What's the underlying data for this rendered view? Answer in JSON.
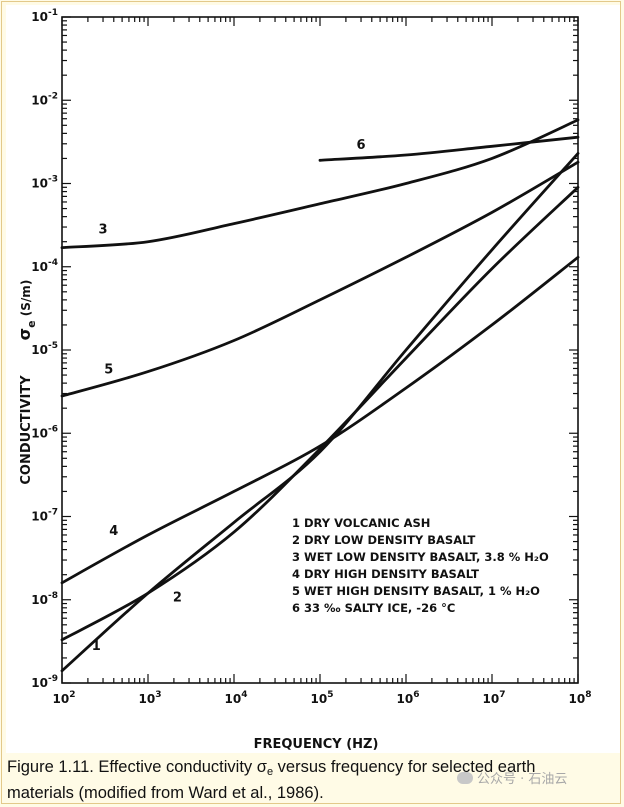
{
  "caption": {
    "line1_before": "Figure 1.11. Effective conductivity σ",
    "line1_sub": "e",
    "line1_after": " versus frequency for selected earth",
    "line2": "materials (modified from Ward et al., 1986)."
  },
  "watermark": "公众号 · 石油云",
  "chart_data": {
    "type": "line",
    "xlabel": "FREQUENCY (HZ)",
    "ylabel_main": "CONDUCTIVITY",
    "ylabel_symbol": "σ",
    "ylabel_sub": "e",
    "ylabel_unit": "(S/m)",
    "x_scale": "log",
    "y_scale": "log",
    "xlim": [
      100,
      100000000
    ],
    "ylim": [
      1e-09,
      0.1
    ],
    "x_ticks": [
      {
        "value": 100,
        "mant": "10",
        "exp": "2"
      },
      {
        "value": 1000,
        "mant": "10",
        "exp": "3"
      },
      {
        "value": 10000,
        "mant": "10",
        "exp": "4"
      },
      {
        "value": 100000,
        "mant": "10",
        "exp": "5"
      },
      {
        "value": 1000000,
        "mant": "10",
        "exp": "6"
      },
      {
        "value": 10000000,
        "mant": "10",
        "exp": "7"
      },
      {
        "value": 100000000,
        "mant": "10",
        "exp": "8"
      }
    ],
    "y_ticks": [
      {
        "value": 1e-09,
        "mant": "10",
        "exp": "-9"
      },
      {
        "value": 1e-08,
        "mant": "10",
        "exp": "-8"
      },
      {
        "value": 1e-07,
        "mant": "10",
        "exp": "-7"
      },
      {
        "value": 1e-06,
        "mant": "10",
        "exp": "-6"
      },
      {
        "value": 1e-05,
        "mant": "10",
        "exp": "-5"
      },
      {
        "value": 0.0001,
        "mant": "10",
        "exp": "-4"
      },
      {
        "value": 0.001,
        "mant": "10",
        "exp": "-3"
      },
      {
        "value": 0.01,
        "mant": "10",
        "exp": "-2"
      },
      {
        "value": 0.1,
        "mant": "10",
        "exp": "-1"
      }
    ],
    "legend_entries": [
      "1  DRY VOLCANIC ASH",
      "2  DRY LOW DENSITY BASALT",
      "3  WET LOW DENSITY BASALT, 3.8 % H₂O",
      "4  DRY HIGH DENSITY BASALT",
      "5  WET HIGH DENSITY BASALT, 1 % H₂O",
      "6  33 ‰ SALTY ICE, -26 °C"
    ],
    "legend_position": "lower-right",
    "series": [
      {
        "label": "1",
        "x": [
          100,
          1000,
          10000,
          100000,
          1000000,
          10000000,
          100000000
        ],
        "y": [
          1.4e-09,
          1.2e-08,
          8.5e-08,
          6e-07,
          1e-05,
          0.00016,
          0.0023
        ]
      },
      {
        "label": "2",
        "x": [
          100,
          1000,
          10000,
          100000,
          1000000,
          10000000,
          100000000
        ],
        "y": [
          3.3e-09,
          1.2e-08,
          6.5e-08,
          6.5e-07,
          8e-06,
          9.5e-05,
          0.0009
        ]
      },
      {
        "label": "3",
        "x": [
          100,
          1000,
          10000,
          100000,
          1000000,
          10000000,
          100000000
        ],
        "y": [
          0.00017,
          0.0002,
          0.00033,
          0.00057,
          0.001,
          0.002,
          0.0058
        ]
      },
      {
        "label": "4",
        "x": [
          100,
          1000,
          10000,
          100000,
          1000000,
          10000000,
          100000000
        ],
        "y": [
          1.6e-08,
          6e-08,
          2e-07,
          7e-07,
          3.5e-06,
          2e-05,
          0.00013
        ]
      },
      {
        "label": "5",
        "x": [
          100,
          1000,
          10000,
          100000,
          1000000,
          10000000,
          100000000
        ],
        "y": [
          2.8e-06,
          5.5e-06,
          1.3e-05,
          4e-05,
          0.00013,
          0.00045,
          0.0018
        ]
      },
      {
        "label": "6",
        "x": [
          100000,
          1000000,
          10000000,
          100000000
        ],
        "y": [
          0.0019,
          0.0022,
          0.0028,
          0.0036
        ]
      }
    ],
    "curve_labels": [
      {
        "text": "1",
        "x": 250,
        "y": 2.5e-09
      },
      {
        "text": "2",
        "x": 2200,
        "y": 9.5e-09
      },
      {
        "text": "3",
        "x": 300,
        "y": 0.00025
      },
      {
        "text": "4",
        "x": 400,
        "y": 6e-08
      },
      {
        "text": "5",
        "x": 350,
        "y": 5.2e-06
      },
      {
        "text": "6",
        "x": 300000,
        "y": 0.0026
      }
    ],
    "grid": false
  }
}
